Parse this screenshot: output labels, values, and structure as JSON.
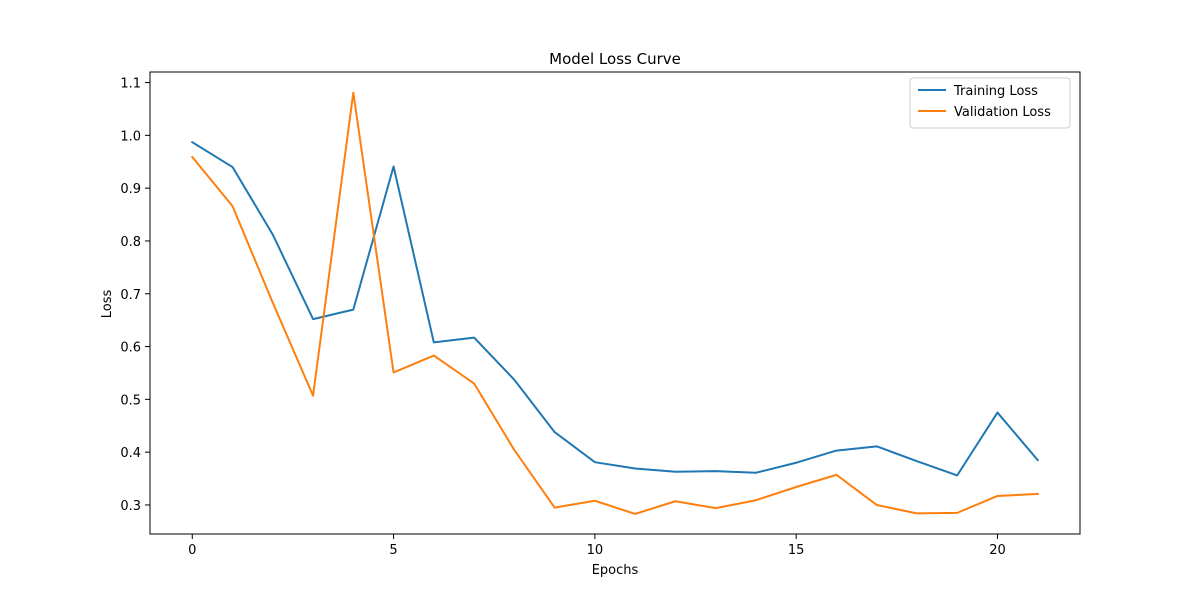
{
  "chart_data": {
    "type": "line",
    "title": "Model Loss Curve",
    "xlabel": "Epochs",
    "ylabel": "Loss",
    "xlim": [
      -1.05,
      22.05
    ],
    "ylim": [
      0.245,
      1.12
    ],
    "xticks": [
      0,
      5,
      10,
      15,
      20
    ],
    "yticks": [
      0.3,
      0.4,
      0.5,
      0.6,
      0.7,
      0.8,
      0.9,
      1.0,
      1.1
    ],
    "ytick_labels": [
      "0.3",
      "0.4",
      "0.5",
      "0.6",
      "0.7",
      "0.8",
      "0.9",
      "1.0",
      "1.1"
    ],
    "grid": false,
    "legend_position": "top-right",
    "x": [
      0,
      1,
      2,
      3,
      4,
      5,
      6,
      7,
      8,
      9,
      10,
      11,
      12,
      13,
      14,
      15,
      16,
      17,
      18,
      19,
      20,
      21
    ],
    "series": [
      {
        "name": "Training Loss",
        "color": "#1f77b4",
        "values": [
          0.987,
          0.94,
          0.812,
          0.652,
          0.67,
          0.941,
          0.608,
          0.617,
          0.537,
          0.438,
          0.381,
          0.369,
          0.363,
          0.364,
          0.361,
          0.38,
          0.403,
          0.411,
          0.383,
          0.356,
          0.475,
          0.385
        ]
      },
      {
        "name": "Validation Loss",
        "color": "#ff7f0e",
        "values": [
          0.959,
          0.866,
          0.683,
          0.507,
          1.081,
          0.551,
          0.583,
          0.53,
          0.404,
          0.295,
          0.308,
          0.283,
          0.307,
          0.294,
          0.309,
          0.334,
          0.357,
          0.3,
          0.284,
          0.285,
          0.317,
          0.321
        ]
      }
    ]
  }
}
